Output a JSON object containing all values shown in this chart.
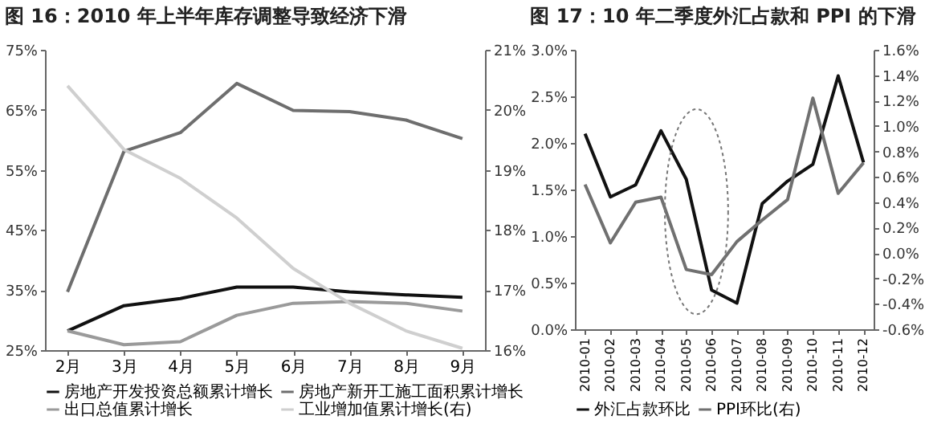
{
  "chart_data": [
    {
      "type": "line",
      "title": "图 16：2010 年上半年库存调整导致经济下滑",
      "categories": [
        "2月",
        "3月",
        "4月",
        "5月",
        "6月",
        "7月",
        "8月",
        "9月"
      ],
      "series": [
        {
          "name": "房地产开发投资总额累计增长",
          "color": "#111111",
          "values": [
            28.2,
            32.4,
            33.6,
            35.5,
            35.5,
            34.7,
            34.2,
            33.8
          ]
        },
        {
          "name": "房地产新开工施工面积累计增长",
          "color": "#6e6e6e",
          "values": [
            34.7,
            58.1,
            61.2,
            69.4,
            64.9,
            64.7,
            63.3,
            60.2
          ]
        },
        {
          "name": "出口总值累计增长",
          "color": "#9a9a9a",
          "values": [
            28.2,
            25.9,
            26.4,
            30.8,
            32.8,
            33.1,
            32.8,
            31.5
          ]
        },
        {
          "name": "工业增加值累计增长(右)",
          "color": "#cfcfcf",
          "axis": "y2",
          "values": [
            20.4,
            19.34,
            18.86,
            18.2,
            17.36,
            16.78,
            16.32,
            16.03
          ]
        }
      ],
      "ylim": [
        25,
        75
      ],
      "yticks": [
        {
          "value": 25,
          "label": "25%"
        },
        {
          "value": 35,
          "label": "35%"
        },
        {
          "value": 45,
          "label": "45%"
        },
        {
          "value": 55,
          "label": "55%"
        },
        {
          "value": 65,
          "label": "65%"
        },
        {
          "value": 75,
          "label": "75%"
        }
      ],
      "y2lim": [
        16,
        21
      ],
      "y2ticks": [
        {
          "value": 16,
          "label": "16%"
        },
        {
          "value": 17,
          "label": "17%"
        },
        {
          "value": 18,
          "label": "18%"
        },
        {
          "value": 19,
          "label": "19%"
        },
        {
          "value": 20,
          "label": "20%"
        },
        {
          "value": 21,
          "label": "21%"
        }
      ],
      "legend": "bottom"
    },
    {
      "type": "line",
      "title": "图 17：10 年二季度外汇占款和 PPI 的下滑",
      "categories": [
        "2010-01",
        "2010-02",
        "2010-03",
        "2010-04",
        "2010-05",
        "2010-06",
        "2010-07",
        "2010-08",
        "2010-09",
        "2010-10",
        "2010-11",
        "2010-12"
      ],
      "series": [
        {
          "name": "外汇占款环比",
          "color": "#111111",
          "values": [
            2.1,
            1.42,
            1.55,
            2.13,
            1.61,
            0.42,
            0.28,
            1.35,
            1.59,
            1.77,
            2.72,
            1.79
          ]
        },
        {
          "name": "PPI环比(右)",
          "color": "#707070",
          "axis": "y2",
          "values": [
            0.54,
            0.08,
            0.4,
            0.44,
            -0.13,
            -0.17,
            0.09,
            0.26,
            0.42,
            1.22,
            0.47,
            0.71
          ]
        }
      ],
      "ylim": [
        0,
        3
      ],
      "yticks": [
        {
          "value": 0,
          "label": "0.0%"
        },
        {
          "value": 0.5,
          "label": "0.5%"
        },
        {
          "value": 1,
          "label": "1.0%"
        },
        {
          "value": 1.5,
          "label": "1.5%"
        },
        {
          "value": 2,
          "label": "2.0%"
        },
        {
          "value": 2.5,
          "label": "2.5%"
        },
        {
          "value": 3,
          "label": "3.0%"
        }
      ],
      "y2lim": [
        -0.6,
        1.6
      ],
      "y2ticks": [
        {
          "value": -0.6,
          "label": "-0.6%"
        },
        {
          "value": -0.4,
          "label": "-0.4%"
        },
        {
          "value": -0.2,
          "label": "-0.2%"
        },
        {
          "value": 0,
          "label": "0.0%"
        },
        {
          "value": 0.2,
          "label": "0.2%"
        },
        {
          "value": 0.4,
          "label": "0.4%"
        },
        {
          "value": 0.6,
          "label": "0.6%"
        },
        {
          "value": 0.8,
          "label": "0.8%"
        },
        {
          "value": 1,
          "label": "1.0%"
        },
        {
          "value": 1.2,
          "label": "1.2%"
        },
        {
          "value": 1.4,
          "label": "1.4%"
        },
        {
          "value": 1.6,
          "label": "1.6%"
        }
      ],
      "legend": "bottom"
    }
  ]
}
